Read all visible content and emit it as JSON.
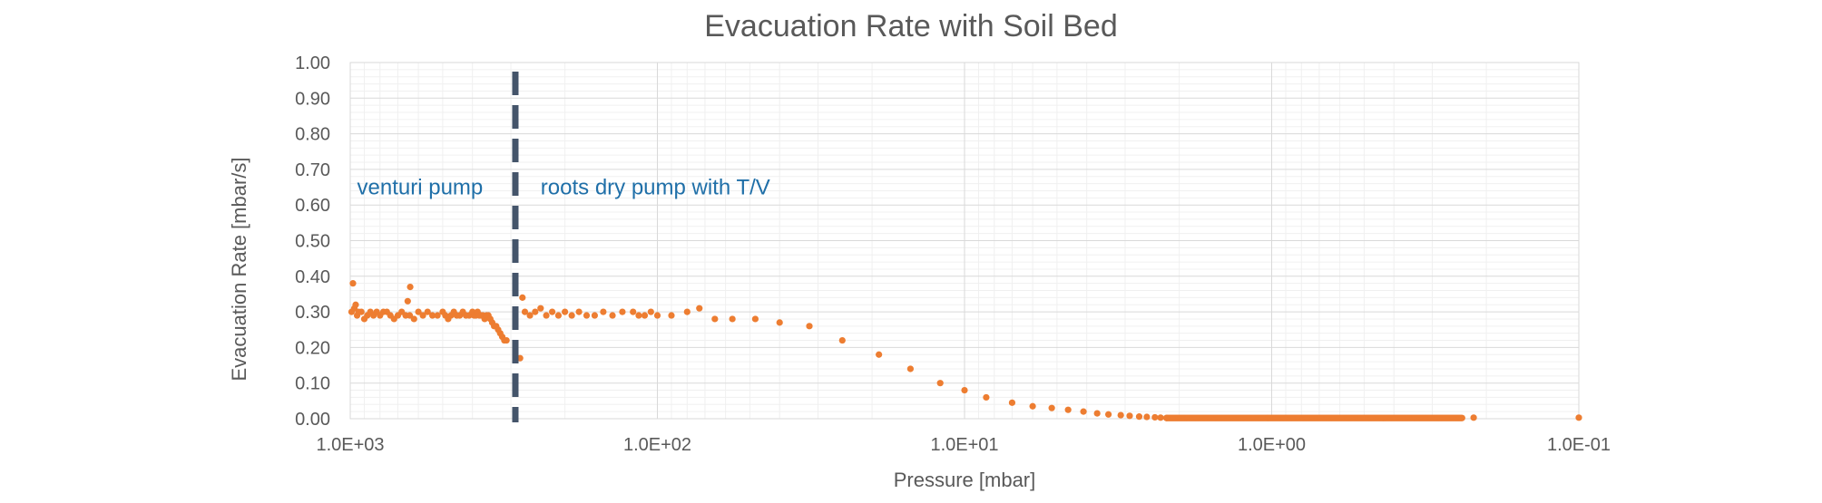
{
  "chart_data": {
    "type": "scatter",
    "title": "Evacuation Rate with Soil Bed",
    "xlabel": "Pressure [mbar]",
    "ylabel": "Evacuation Rate [mbar/s]",
    "x_scale": "log",
    "x_reversed": true,
    "xlim": [
      1000,
      0.1
    ],
    "ylim": [
      0,
      1
    ],
    "x_ticks": [
      1000,
      100,
      10,
      1,
      0.1
    ],
    "x_tick_labels": [
      "1.0E+03",
      "1.0E+02",
      "1.0E+01",
      "1.0E+00",
      "1.0E-01"
    ],
    "y_ticks": [
      0,
      0.1,
      0.2,
      0.3,
      0.4,
      0.5,
      0.6,
      0.7,
      0.8,
      0.9,
      1.0
    ],
    "y_tick_labels": [
      "0.00",
      "0.10",
      "0.20",
      "0.30",
      "0.40",
      "0.50",
      "0.60",
      "0.70",
      "0.80",
      "0.90",
      "1.00"
    ],
    "grid": true,
    "marker_color": "#ed7d31",
    "divider": {
      "x": 290,
      "color": "#44546a",
      "style": "dashed"
    },
    "annotations": [
      {
        "text": "venturi pump",
        "x": 950,
        "y": 0.65
      },
      {
        "text": "roots dry pump with T/V",
        "x": 240,
        "y": 0.65
      }
    ],
    "annotation_color": "#1f6fa8",
    "points": [
      [
        990,
        0.3
      ],
      [
        980,
        0.38
      ],
      [
        970,
        0.31
      ],
      [
        960,
        0.32
      ],
      [
        950,
        0.29
      ],
      [
        940,
        0.3
      ],
      [
        920,
        0.3
      ],
      [
        900,
        0.28
      ],
      [
        880,
        0.29
      ],
      [
        860,
        0.3
      ],
      [
        840,
        0.29
      ],
      [
        820,
        0.3
      ],
      [
        800,
        0.29
      ],
      [
        780,
        0.3
      ],
      [
        760,
        0.3
      ],
      [
        740,
        0.29
      ],
      [
        720,
        0.28
      ],
      [
        700,
        0.29
      ],
      [
        680,
        0.3
      ],
      [
        660,
        0.29
      ],
      [
        640,
        0.29
      ],
      [
        620,
        0.28
      ],
      [
        600,
        0.3
      ],
      [
        580,
        0.29
      ],
      [
        560,
        0.3
      ],
      [
        540,
        0.29
      ],
      [
        520,
        0.29
      ],
      [
        500,
        0.3
      ],
      [
        490,
        0.29
      ],
      [
        480,
        0.28
      ],
      [
        470,
        0.29
      ],
      [
        460,
        0.3
      ],
      [
        450,
        0.29
      ],
      [
        440,
        0.29
      ],
      [
        430,
        0.3
      ],
      [
        420,
        0.29
      ],
      [
        410,
        0.29
      ],
      [
        400,
        0.3
      ],
      [
        395,
        0.29
      ],
      [
        390,
        0.29
      ],
      [
        385,
        0.3
      ],
      [
        380,
        0.29
      ],
      [
        375,
        0.29
      ],
      [
        370,
        0.29
      ],
      [
        365,
        0.28
      ],
      [
        360,
        0.29
      ],
      [
        355,
        0.29
      ],
      [
        350,
        0.28
      ],
      [
        345,
        0.27
      ],
      [
        340,
        0.26
      ],
      [
        335,
        0.26
      ],
      [
        330,
        0.25
      ],
      [
        325,
        0.24
      ],
      [
        320,
        0.23
      ],
      [
        315,
        0.22
      ],
      [
        310,
        0.22
      ],
      [
        638,
        0.37
      ],
      [
        650,
        0.33
      ],
      [
        280,
        0.17
      ],
      [
        275,
        0.34
      ],
      [
        270,
        0.3
      ],
      [
        260,
        0.29
      ],
      [
        250,
        0.3
      ],
      [
        240,
        0.31
      ],
      [
        230,
        0.29
      ],
      [
        220,
        0.3
      ],
      [
        210,
        0.29
      ],
      [
        200,
        0.3
      ],
      [
        190,
        0.29
      ],
      [
        180,
        0.3
      ],
      [
        170,
        0.29
      ],
      [
        160,
        0.29
      ],
      [
        150,
        0.3
      ],
      [
        140,
        0.29
      ],
      [
        130,
        0.3
      ],
      [
        120,
        0.3
      ],
      [
        115,
        0.29
      ],
      [
        110,
        0.29
      ],
      [
        105,
        0.3
      ],
      [
        100,
        0.29
      ],
      [
        90,
        0.29
      ],
      [
        80,
        0.3
      ],
      [
        73,
        0.31
      ],
      [
        65,
        0.28
      ],
      [
        57,
        0.28
      ],
      [
        48,
        0.28
      ],
      [
        40,
        0.27
      ],
      [
        32,
        0.26
      ],
      [
        25,
        0.22
      ],
      [
        19,
        0.18
      ],
      [
        15,
        0.14
      ],
      [
        12,
        0.1
      ],
      [
        10,
        0.08
      ],
      [
        8.5,
        0.06
      ],
      [
        7,
        0.045
      ],
      [
        6,
        0.035
      ],
      [
        5.2,
        0.03
      ],
      [
        4.6,
        0.025
      ],
      [
        4.1,
        0.02
      ],
      [
        3.7,
        0.015
      ],
      [
        3.4,
        0.012
      ],
      [
        3.1,
        0.01
      ],
      [
        2.9,
        0.008
      ],
      [
        2.7,
        0.006
      ],
      [
        2.55,
        0.005
      ],
      [
        2.4,
        0.004
      ],
      [
        2.3,
        0.003
      ],
      [
        2.2,
        0.002
      ],
      [
        0.22,
        0.003
      ],
      [
        0.1,
        0.003
      ]
    ],
    "dense_tail": {
      "from": 2.2,
      "to": 0.24,
      "y": 0.002,
      "count": 320
    }
  }
}
